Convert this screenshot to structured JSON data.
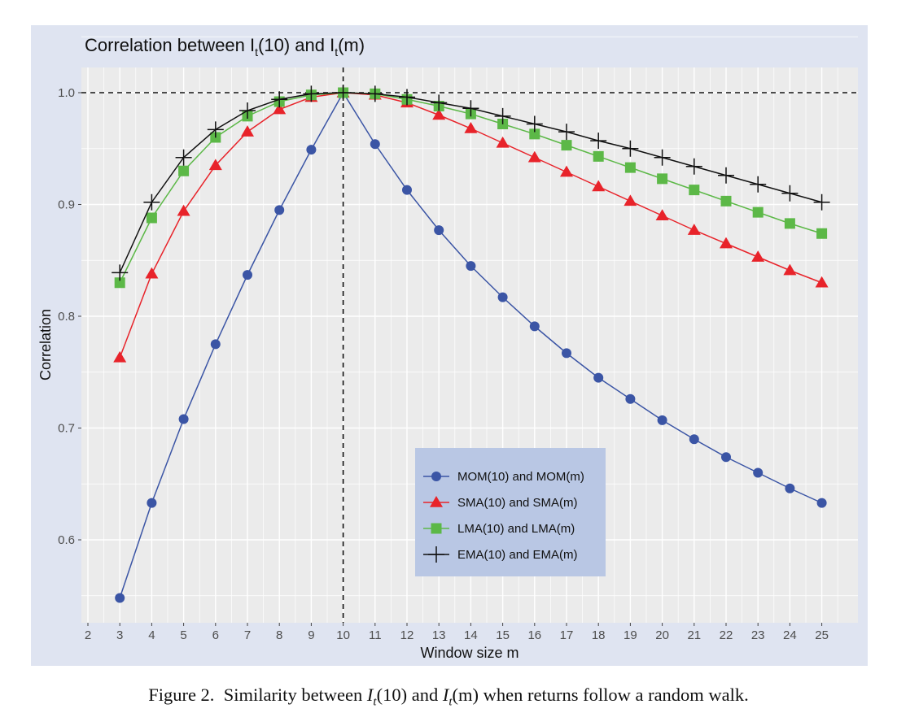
{
  "figure": {
    "caption_label": "Figure 2.",
    "caption_pre": "Similarity between ",
    "caption_mid": " and ",
    "caption_post": " when returns follow a random walk.",
    "caption_sym1": "I",
    "caption_sub1": "t",
    "caption_arg1": "(10)",
    "caption_sym2": "I",
    "caption_sub2": "t",
    "caption_arg2": "(m)"
  },
  "chart_data": {
    "type": "line",
    "title_pre": "Correlation between ",
    "title_sym": "I",
    "title_sub": "t",
    "title_arg1": "(10)",
    "title_mid": " and ",
    "title_arg2": "(m)",
    "xlabel": "Window size m",
    "ylabel": "Correlation",
    "xlim": [
      2,
      25
    ],
    "ylim": [
      0.55,
      1.0
    ],
    "x_ticks": [
      2,
      3,
      4,
      5,
      6,
      7,
      8,
      9,
      10,
      11,
      12,
      13,
      14,
      15,
      16,
      17,
      18,
      19,
      20,
      21,
      22,
      23,
      24,
      25
    ],
    "y_ticks": [
      0.6,
      0.7,
      0.8,
      0.9,
      1.0
    ],
    "y_tick_labels": [
      "0.6",
      "0.7",
      "0.8",
      "0.9",
      "1.0"
    ],
    "reference_lines": {
      "horizontal": 1.0,
      "vertical": 10
    },
    "grid": true,
    "legend_position": "bottom-center",
    "x": [
      3,
      4,
      5,
      6,
      7,
      8,
      9,
      10,
      11,
      12,
      13,
      14,
      15,
      16,
      17,
      18,
      19,
      20,
      21,
      22,
      23,
      24,
      25
    ],
    "series": [
      {
        "name": "MOM(10) and MOM(m)",
        "color": "#3b55a5",
        "marker": "circle",
        "values": [
          0.548,
          0.633,
          0.708,
          0.775,
          0.837,
          0.895,
          0.949,
          1.0,
          0.954,
          0.913,
          0.877,
          0.845,
          0.817,
          0.791,
          0.767,
          0.745,
          0.726,
          0.707,
          0.69,
          0.674,
          0.66,
          0.646,
          0.633
        ]
      },
      {
        "name": "SMA(10) and SMA(m)",
        "color": "#e8232a",
        "marker": "triangle",
        "values": [
          0.763,
          0.838,
          0.894,
          0.935,
          0.965,
          0.985,
          0.996,
          1.0,
          0.998,
          0.991,
          0.98,
          0.968,
          0.955,
          0.942,
          0.929,
          0.916,
          0.903,
          0.89,
          0.877,
          0.865,
          0.853,
          0.841,
          0.83
        ]
      },
      {
        "name": "LMA(10) and LMA(m)",
        "color": "#5cb847",
        "marker": "square",
        "values": [
          0.83,
          0.888,
          0.93,
          0.96,
          0.979,
          0.992,
          0.998,
          1.0,
          0.999,
          0.994,
          0.988,
          0.981,
          0.972,
          0.963,
          0.953,
          0.943,
          0.933,
          0.923,
          0.913,
          0.903,
          0.893,
          0.883,
          0.874
        ]
      },
      {
        "name": "EMA(10) and EMA(m)",
        "color": "#111111",
        "marker": "plus",
        "values": [
          0.839,
          0.902,
          0.942,
          0.967,
          0.984,
          0.994,
          0.999,
          1.0,
          0.999,
          0.996,
          0.991,
          0.986,
          0.979,
          0.972,
          0.965,
          0.957,
          0.95,
          0.942,
          0.934,
          0.926,
          0.918,
          0.91,
          0.902
        ]
      }
    ],
    "colors": {
      "panel_bg": "#dfe4f1",
      "plot_bg": "#ebebeb",
      "grid": "#ffffff",
      "legend_bg": "#b9c7e4"
    }
  }
}
